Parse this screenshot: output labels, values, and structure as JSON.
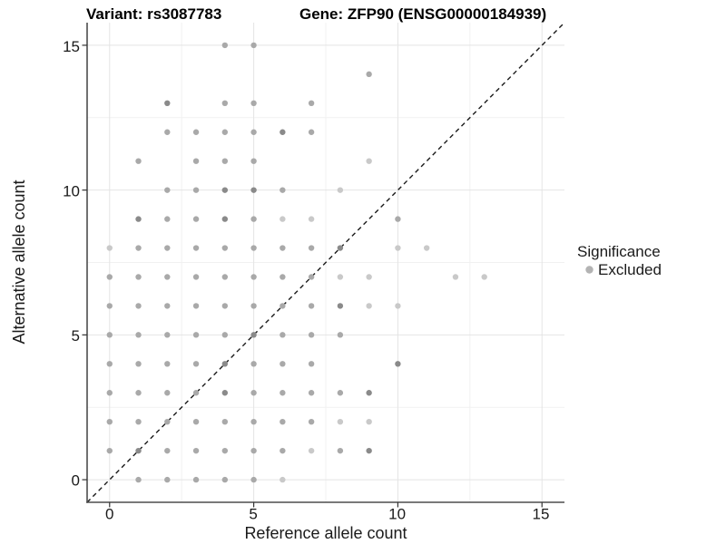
{
  "header": {
    "variant_title": "Variant: rs3087783",
    "gene_title": "Gene: ZFP90 (ENSG00000184939)"
  },
  "chart_data": {
    "type": "scatter",
    "title_left": "Variant: rs3087783",
    "title_right": "Gene: ZFP90 (ENSG00000184939)",
    "xlabel": "Reference allele count",
    "ylabel": "Alternative allele count",
    "xlim": [
      0,
      15
    ],
    "ylim": [
      0,
      15
    ],
    "x_ticks": [
      0,
      5,
      10,
      15
    ],
    "y_ticks": [
      0,
      5,
      10,
      15
    ],
    "x_tick_labels": [
      "0",
      "5",
      "10",
      "15"
    ],
    "y_tick_labels": [
      "0",
      "5",
      "10",
      "15"
    ],
    "minor_ticks": [
      2.5,
      7.5,
      12.5
    ],
    "grid": true,
    "grid_major_color": "#e4e4e4",
    "grid_minor_color": "#f1f1f1",
    "axis_line_color": "#4d4d4d",
    "identity_line": {
      "slope": 1,
      "intercept": 0,
      "style": "dashed",
      "color": "#1a1a1a"
    },
    "legend_position": "right",
    "legend": {
      "title": "Significance",
      "items": [
        {
          "label": "Excluded",
          "color": "#b3b3b3"
        }
      ]
    },
    "point_colors": {
      "n": "#a9a9a9",
      "l": "#c9c9c9",
      "d": "#8a8a8a"
    },
    "point_radius": 3.2,
    "points": [
      [
        0,
        1,
        "n"
      ],
      [
        0,
        2,
        "n"
      ],
      [
        0,
        3,
        "n"
      ],
      [
        0,
        4,
        "n"
      ],
      [
        0,
        5,
        "n"
      ],
      [
        0,
        6,
        "n"
      ],
      [
        0,
        7,
        "n"
      ],
      [
        0,
        8,
        "l"
      ],
      [
        1,
        0,
        "n"
      ],
      [
        1,
        1,
        "d"
      ],
      [
        1,
        2,
        "n"
      ],
      [
        1,
        3,
        "n"
      ],
      [
        1,
        4,
        "n"
      ],
      [
        1,
        5,
        "n"
      ],
      [
        1,
        6,
        "n"
      ],
      [
        1,
        7,
        "n"
      ],
      [
        1,
        8,
        "n"
      ],
      [
        1,
        9,
        "d"
      ],
      [
        1,
        11,
        "n"
      ],
      [
        2,
        0,
        "n"
      ],
      [
        2,
        1,
        "n"
      ],
      [
        2,
        2,
        "n"
      ],
      [
        2,
        3,
        "n"
      ],
      [
        2,
        4,
        "n"
      ],
      [
        2,
        5,
        "n"
      ],
      [
        2,
        6,
        "n"
      ],
      [
        2,
        7,
        "n"
      ],
      [
        2,
        8,
        "n"
      ],
      [
        2,
        9,
        "n"
      ],
      [
        2,
        10,
        "n"
      ],
      [
        2,
        12,
        "n"
      ],
      [
        2,
        13,
        "d"
      ],
      [
        3,
        0,
        "n"
      ],
      [
        3,
        1,
        "n"
      ],
      [
        3,
        2,
        "n"
      ],
      [
        3,
        3,
        "n"
      ],
      [
        3,
        4,
        "n"
      ],
      [
        3,
        5,
        "n"
      ],
      [
        3,
        6,
        "n"
      ],
      [
        3,
        7,
        "n"
      ],
      [
        3,
        8,
        "n"
      ],
      [
        3,
        9,
        "n"
      ],
      [
        3,
        10,
        "n"
      ],
      [
        3,
        11,
        "n"
      ],
      [
        3,
        12,
        "n"
      ],
      [
        4,
        0,
        "n"
      ],
      [
        4,
        1,
        "n"
      ],
      [
        4,
        2,
        "n"
      ],
      [
        4,
        3,
        "d"
      ],
      [
        4,
        4,
        "d"
      ],
      [
        4,
        5,
        "n"
      ],
      [
        4,
        6,
        "n"
      ],
      [
        4,
        7,
        "n"
      ],
      [
        4,
        8,
        "n"
      ],
      [
        4,
        9,
        "d"
      ],
      [
        4,
        10,
        "d"
      ],
      [
        4,
        11,
        "n"
      ],
      [
        4,
        12,
        "n"
      ],
      [
        4,
        13,
        "n"
      ],
      [
        4,
        15,
        "n"
      ],
      [
        5,
        0,
        "n"
      ],
      [
        5,
        1,
        "n"
      ],
      [
        5,
        2,
        "n"
      ],
      [
        5,
        3,
        "n"
      ],
      [
        5,
        4,
        "n"
      ],
      [
        5,
        5,
        "d"
      ],
      [
        5,
        6,
        "n"
      ],
      [
        5,
        7,
        "n"
      ],
      [
        5,
        8,
        "n"
      ],
      [
        5,
        9,
        "n"
      ],
      [
        5,
        10,
        "d"
      ],
      [
        5,
        11,
        "n"
      ],
      [
        5,
        12,
        "n"
      ],
      [
        5,
        13,
        "n"
      ],
      [
        5,
        15,
        "n"
      ],
      [
        6,
        0,
        "l"
      ],
      [
        6,
        1,
        "n"
      ],
      [
        6,
        2,
        "n"
      ],
      [
        6,
        3,
        "n"
      ],
      [
        6,
        4,
        "n"
      ],
      [
        6,
        5,
        "n"
      ],
      [
        6,
        6,
        "n"
      ],
      [
        6,
        7,
        "n"
      ],
      [
        6,
        8,
        "n"
      ],
      [
        6,
        9,
        "l"
      ],
      [
        6,
        10,
        "n"
      ],
      [
        6,
        12,
        "d"
      ],
      [
        7,
        1,
        "l"
      ],
      [
        7,
        2,
        "n"
      ],
      [
        7,
        3,
        "n"
      ],
      [
        7,
        4,
        "n"
      ],
      [
        7,
        5,
        "n"
      ],
      [
        7,
        6,
        "n"
      ],
      [
        7,
        7,
        "n"
      ],
      [
        7,
        8,
        "n"
      ],
      [
        7,
        9,
        "l"
      ],
      [
        7,
        12,
        "n"
      ],
      [
        7,
        13,
        "n"
      ],
      [
        8,
        1,
        "n"
      ],
      [
        8,
        2,
        "l"
      ],
      [
        8,
        3,
        "n"
      ],
      [
        8,
        5,
        "n"
      ],
      [
        8,
        6,
        "d"
      ],
      [
        8,
        7,
        "l"
      ],
      [
        8,
        8,
        "d"
      ],
      [
        8,
        10,
        "l"
      ],
      [
        9,
        1,
        "d"
      ],
      [
        9,
        2,
        "l"
      ],
      [
        9,
        3,
        "d"
      ],
      [
        9,
        6,
        "l"
      ],
      [
        9,
        7,
        "l"
      ],
      [
        9,
        11,
        "l"
      ],
      [
        9,
        14,
        "n"
      ],
      [
        10,
        4,
        "d"
      ],
      [
        10,
        6,
        "l"
      ],
      [
        10,
        8,
        "l"
      ],
      [
        10,
        9,
        "n"
      ],
      [
        11,
        8,
        "l"
      ],
      [
        12,
        7,
        "l"
      ],
      [
        13,
        7,
        "l"
      ]
    ]
  }
}
